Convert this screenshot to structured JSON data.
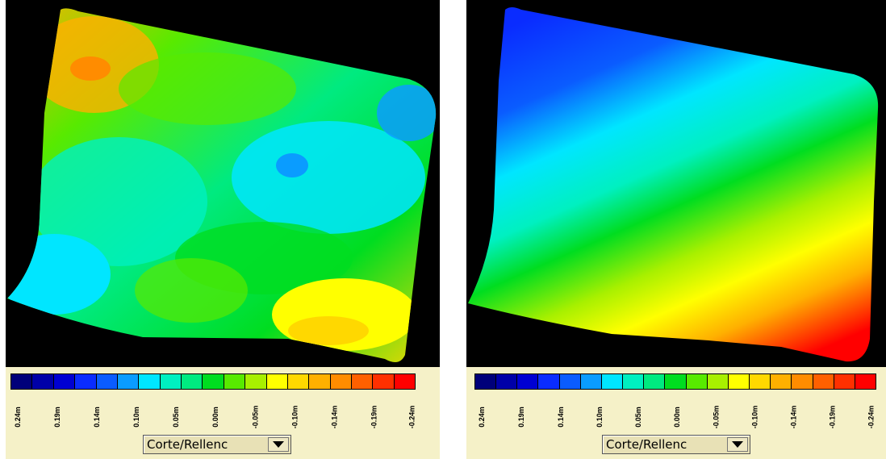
{
  "panels": [
    {
      "id": "left",
      "legend_labels": [
        "0.24m",
        "0.19m",
        "0.14m",
        "0.10m",
        "0.05m",
        "0.00m",
        "-0.05m",
        "-0.10m",
        "-0.14m",
        "-0.19m",
        "-0.24m"
      ],
      "dropdown_value": "Corte/Rellenc"
    },
    {
      "id": "right",
      "legend_labels": [
        "0.24m",
        "0.19m",
        "0.14m",
        "0.10m",
        "0.05m",
        "0.00m",
        "-0.05m",
        "-0.10m",
        "-0.14m",
        "-0.19m",
        "-0.24m"
      ],
      "dropdown_value": "Corte/Rellenc"
    }
  ],
  "legend_colors": [
    "#00007a",
    "#0000a8",
    "#0000d2",
    "#0a2cff",
    "#0a5cff",
    "#0a9cff",
    "#00e6ff",
    "#00f0c0",
    "#00ea80",
    "#00dd20",
    "#58ea00",
    "#a8f000",
    "#ffff00",
    "#ffd800",
    "#ffb000",
    "#ff8c00",
    "#ff6000",
    "#ff3000",
    "#ff0000"
  ],
  "icons": {
    "dropdown_arrow": "caret-down-icon"
  }
}
